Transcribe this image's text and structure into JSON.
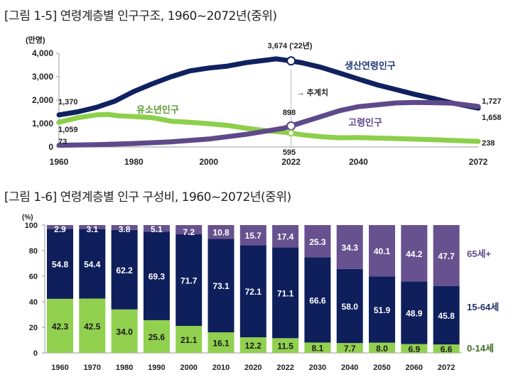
{
  "chart_data": [
    {
      "type": "line",
      "title": "[그림 1-5] 연령계층별 인구구조, 1960~2072년(중위)",
      "ylabel": "(만명)",
      "ylim": [
        0,
        4000
      ],
      "xlim": [
        1960,
        2072
      ],
      "yticks": [
        "0",
        "1,000",
        "2,000",
        "3,000",
        "4,000"
      ],
      "yticks_values": [
        0,
        1000,
        2000,
        3000,
        4000
      ],
      "xticks": [
        "1960",
        "1980",
        "2000",
        "2022",
        "2040",
        "2072"
      ],
      "xticks_values": [
        1960,
        1980,
        2000,
        2022,
        2040,
        2072
      ],
      "grid": false,
      "divider_year": 2022,
      "projection_label": "→ 추계치",
      "series": [
        {
          "name": "생산연령인구",
          "color": "#0f2160",
          "x": [
            1960,
            1965,
            1970,
            1975,
            1980,
            1985,
            1990,
            1995,
            2000,
            2005,
            2010,
            2015,
            2018,
            2022,
            2025,
            2030,
            2035,
            2040,
            2045,
            2050,
            2055,
            2060,
            2065,
            2072
          ],
          "values": [
            1370,
            1500,
            1690,
            1960,
            2370,
            2700,
            3000,
            3250,
            3370,
            3450,
            3600,
            3700,
            3760,
            3674,
            3590,
            3400,
            3150,
            2900,
            2650,
            2450,
            2250,
            2070,
            1880,
            1658
          ]
        },
        {
          "name": "유소년인구",
          "color": "#8dcf4c",
          "x": [
            1960,
            1965,
            1970,
            1973,
            1976,
            1980,
            1985,
            1990,
            1995,
            2000,
            2005,
            2010,
            2015,
            2020,
            2022,
            2025,
            2030,
            2035,
            2040,
            2045,
            2050,
            2060,
            2072
          ],
          "values": [
            1059,
            1250,
            1370,
            1390,
            1330,
            1300,
            1250,
            1100,
            1050,
            990,
            920,
            800,
            700,
            630,
            595,
            520,
            440,
            390,
            400,
            380,
            360,
            310,
            238
          ]
        },
        {
          "name": "고령인구",
          "color": "#5e4a8a",
          "x": [
            1960,
            1970,
            1980,
            1990,
            2000,
            2010,
            2020,
            2022,
            2025,
            2030,
            2035,
            2040,
            2045,
            2050,
            2055,
            2060,
            2065,
            2072
          ],
          "values": [
            73,
            100,
            150,
            220,
            340,
            540,
            800,
            898,
            1050,
            1300,
            1550,
            1720,
            1800,
            1880,
            1900,
            1890,
            1870,
            1727
          ]
        }
      ],
      "annotations": [
        {
          "text": "3,674 ('22년)",
          "x": 2022,
          "y": 3674
        },
        {
          "text": "1,370",
          "x": 1960,
          "y": 1370
        },
        {
          "text": "1,059",
          "x": 1960,
          "y": 1059
        },
        {
          "text": "73",
          "x": 1960,
          "y": 73
        },
        {
          "text": "898",
          "x": 2022,
          "y": 898
        },
        {
          "text": "595",
          "x": 2022,
          "y": 595
        },
        {
          "text": "1,727",
          "x": 2072,
          "y": 1727
        },
        {
          "text": "1,658",
          "x": 2072,
          "y": 1658
        },
        {
          "text": "238",
          "x": 2072,
          "y": 238
        }
      ]
    },
    {
      "type": "bar",
      "stacked": true,
      "title": "[그림 1-6] 연령계층별 인구 구성비, 1960~2072년(중위)",
      "ylabel": "(%)",
      "ylim": [
        0,
        100
      ],
      "yticks": [
        "0",
        "20",
        "40",
        "60",
        "80",
        "100"
      ],
      "yticks_values": [
        0,
        20,
        40,
        60,
        80,
        100
      ],
      "grid": false,
      "legend": "right",
      "categories": [
        "1960",
        "1970",
        "1980",
        "1990",
        "2000",
        "2010",
        "2020",
        "2022",
        "2030",
        "2040",
        "2050",
        "2060",
        "2072"
      ],
      "series": [
        {
          "name": "0-14세",
          "color": "#92d050",
          "label_color": "#3f6b22",
          "values": [
            42.3,
            42.5,
            34.0,
            25.6,
            21.1,
            16.1,
            12.2,
            11.5,
            8.1,
            7.7,
            8.0,
            6.9,
            6.6
          ]
        },
        {
          "name": "15-64세",
          "color": "#0e1f5b",
          "label_color": "#1f3468",
          "values": [
            54.8,
            54.4,
            62.2,
            69.3,
            71.7,
            73.1,
            72.1,
            71.1,
            66.6,
            58.0,
            51.9,
            48.9,
            45.8
          ]
        },
        {
          "name": "65세+",
          "color": "#67528f",
          "label_color": "#5e4a8a",
          "values": [
            2.9,
            3.1,
            3.8,
            5.1,
            7.2,
            10.8,
            15.7,
            17.4,
            25.3,
            34.3,
            40.1,
            44.2,
            47.7
          ]
        }
      ]
    }
  ]
}
